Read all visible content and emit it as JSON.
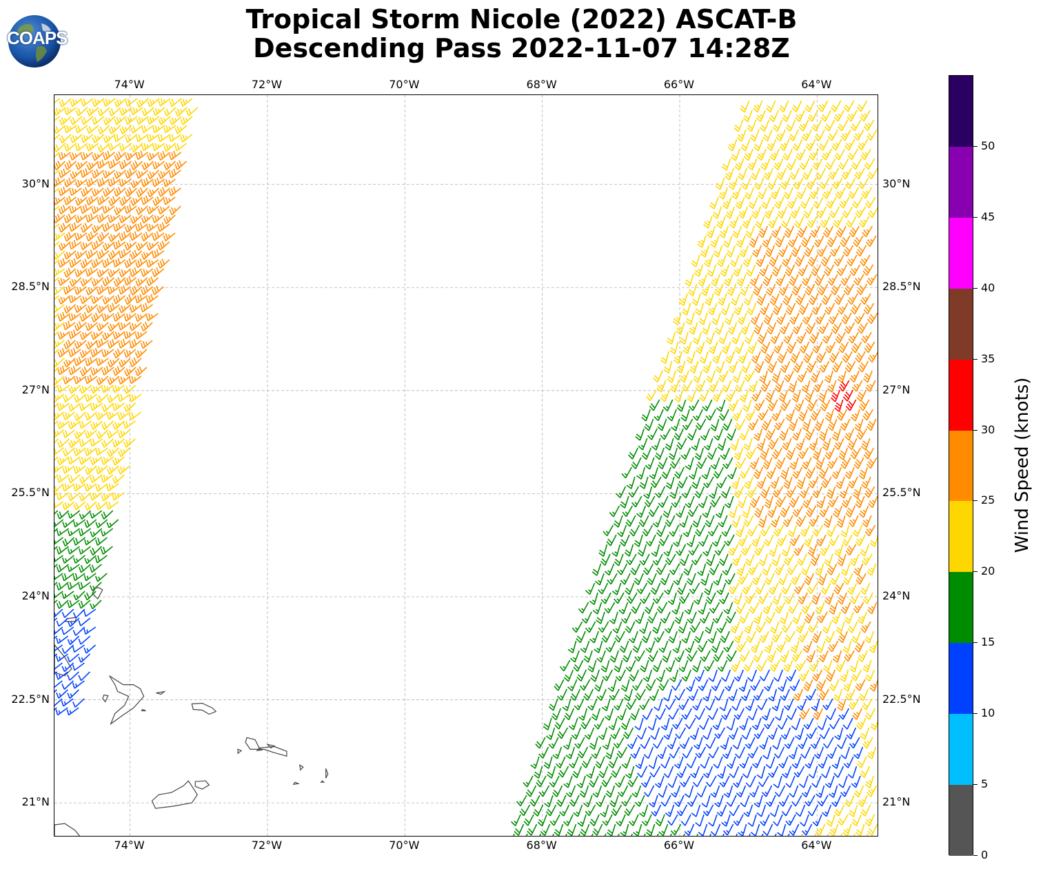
{
  "title": {
    "line1": "Tropical Storm Nicole (2022) ASCAT-B",
    "line2": "Descending Pass 2022-11-07 14:28Z"
  },
  "logo": {
    "text": "COAPS"
  },
  "map": {
    "lon_range": [
      -75.1,
      -63.1
    ],
    "lat_range": [
      20.5,
      31.3
    ],
    "lon_ticks": [
      {
        "value": -74,
        "label": "74°W"
      },
      {
        "value": -72,
        "label": "72°W"
      },
      {
        "value": -70,
        "label": "70°W"
      },
      {
        "value": -68,
        "label": "68°W"
      },
      {
        "value": -66,
        "label": "66°W"
      },
      {
        "value": -64,
        "label": "64°W"
      }
    ],
    "lat_ticks": [
      {
        "value": 30,
        "label": "30°N"
      },
      {
        "value": 28.5,
        "label": "28.5°N"
      },
      {
        "value": 27,
        "label": "27°N"
      },
      {
        "value": 25.5,
        "label": "25.5°N"
      },
      {
        "value": 24,
        "label": "24°N"
      },
      {
        "value": 22.5,
        "label": "22.5°N"
      },
      {
        "value": 21,
        "label": "21°N"
      }
    ],
    "grid": true,
    "coastline_color": "#444444",
    "islands": [
      [
        [
          -74.45,
          24.13
        ],
        [
          -74.4,
          24.1
        ],
        [
          -74.47,
          23.97
        ],
        [
          -74.55,
          24.05
        ],
        [
          -74.5,
          24.13
        ]
      ],
      [
        [
          -74.92,
          23.68
        ],
        [
          -74.78,
          23.7
        ],
        [
          -74.8,
          23.64
        ],
        [
          -74.95,
          23.64
        ]
      ],
      [
        [
          -75.1,
          23.3
        ],
        [
          -74.95,
          23.12
        ],
        [
          -74.85,
          22.95
        ],
        [
          -74.95,
          22.85
        ],
        [
          -75.1,
          22.9
        ]
      ],
      [
        [
          -73.82,
          22.36
        ],
        [
          -73.77,
          22.34
        ],
        [
          -73.83,
          22.34
        ]
      ],
      [
        [
          -74.3,
          22.85
        ],
        [
          -74.1,
          22.72
        ],
        [
          -73.95,
          22.72
        ],
        [
          -73.85,
          22.66
        ],
        [
          -73.8,
          22.55
        ],
        [
          -73.95,
          22.38
        ],
        [
          -74.1,
          22.28
        ],
        [
          -74.28,
          22.15
        ],
        [
          -74.22,
          22.3
        ],
        [
          -74.08,
          22.42
        ],
        [
          -74.02,
          22.55
        ],
        [
          -74.18,
          22.62
        ],
        [
          -74.22,
          22.72
        ]
      ],
      [
        [
          -74.38,
          22.57
        ],
        [
          -74.32,
          22.56
        ],
        [
          -74.36,
          22.47
        ],
        [
          -74.4,
          22.52
        ]
      ],
      [
        [
          -73.62,
          22.6
        ],
        [
          -73.5,
          22.62
        ],
        [
          -73.55,
          22.58
        ]
      ],
      [
        [
          -73.1,
          22.44
        ],
        [
          -72.95,
          22.45
        ],
        [
          -72.8,
          22.38
        ],
        [
          -72.75,
          22.33
        ],
        [
          -72.85,
          22.29
        ],
        [
          -72.95,
          22.35
        ],
        [
          -73.08,
          22.36
        ]
      ],
      [
        [
          -72.3,
          21.95
        ],
        [
          -72.18,
          21.92
        ],
        [
          -72.12,
          21.8
        ],
        [
          -71.9,
          21.82
        ],
        [
          -71.72,
          21.75
        ],
        [
          -71.72,
          21.68
        ],
        [
          -71.9,
          21.73
        ],
        [
          -72.05,
          21.78
        ],
        [
          -72.25,
          21.78
        ],
        [
          -72.32,
          21.88
        ]
      ],
      [
        [
          -72.0,
          21.85
        ],
        [
          -71.9,
          21.83
        ],
        [
          -71.95,
          21.8
        ]
      ],
      [
        [
          -72.43,
          21.78
        ],
        [
          -72.38,
          21.76
        ],
        [
          -72.43,
          21.72
        ]
      ],
      [
        [
          -72.12,
          21.8
        ],
        [
          -72.08,
          21.77
        ],
        [
          -72.15,
          21.76
        ]
      ],
      [
        [
          -71.53,
          21.55
        ],
        [
          -71.48,
          21.52
        ],
        [
          -71.52,
          21.48
        ]
      ],
      [
        [
          -71.15,
          21.5
        ],
        [
          -71.12,
          21.42
        ],
        [
          -71.15,
          21.36
        ]
      ],
      [
        [
          -71.2,
          21.32
        ],
        [
          -71.18,
          21.3
        ],
        [
          -71.22,
          21.3
        ]
      ],
      [
        [
          -71.6,
          21.3
        ],
        [
          -71.55,
          21.28
        ],
        [
          -71.62,
          21.27
        ]
      ],
      [
        [
          -73.05,
          21.31
        ],
        [
          -72.9,
          21.32
        ],
        [
          -72.85,
          21.26
        ],
        [
          -72.95,
          21.2
        ],
        [
          -73.05,
          21.24
        ]
      ],
      [
        [
          -73.15,
          21.32
        ],
        [
          -73.02,
          21.12
        ],
        [
          -73.1,
          21.0
        ],
        [
          -73.38,
          20.95
        ],
        [
          -73.63,
          20.92
        ],
        [
          -73.68,
          21.03
        ],
        [
          -73.58,
          21.12
        ],
        [
          -73.4,
          21.15
        ],
        [
          -73.22,
          21.25
        ]
      ],
      [
        [
          -75.1,
          20.68
        ],
        [
          -74.95,
          20.7
        ],
        [
          -74.8,
          20.6
        ],
        [
          -74.72,
          20.5
        ],
        [
          -75.1,
          20.5
        ]
      ]
    ]
  },
  "colorbar": {
    "title": "Wind Speed (knots)",
    "min": 0,
    "max": 55,
    "bins": [
      {
        "low": 0,
        "high": 5,
        "color": "#555555"
      },
      {
        "low": 5,
        "high": 10,
        "color": "#00bfff"
      },
      {
        "low": 10,
        "high": 15,
        "color": "#0040ff"
      },
      {
        "low": 15,
        "high": 20,
        "color": "#008c00"
      },
      {
        "low": 20,
        "high": 25,
        "color": "#ffd700"
      },
      {
        "low": 25,
        "high": 30,
        "color": "#ff8c00"
      },
      {
        "low": 30,
        "high": 35,
        "color": "#ff0000"
      },
      {
        "low": 35,
        "high": 40,
        "color": "#803a28"
      },
      {
        "low": 40,
        "high": 45,
        "color": "#ff00ff"
      },
      {
        "low": 45,
        "high": 50,
        "color": "#8800b0"
      },
      {
        "low": 50,
        "high": 55,
        "color": "#2a0060"
      }
    ],
    "tick_labels": [
      "0",
      "5",
      "10",
      "15",
      "20",
      "25",
      "30",
      "35",
      "40",
      "45",
      "50"
    ]
  }
}
